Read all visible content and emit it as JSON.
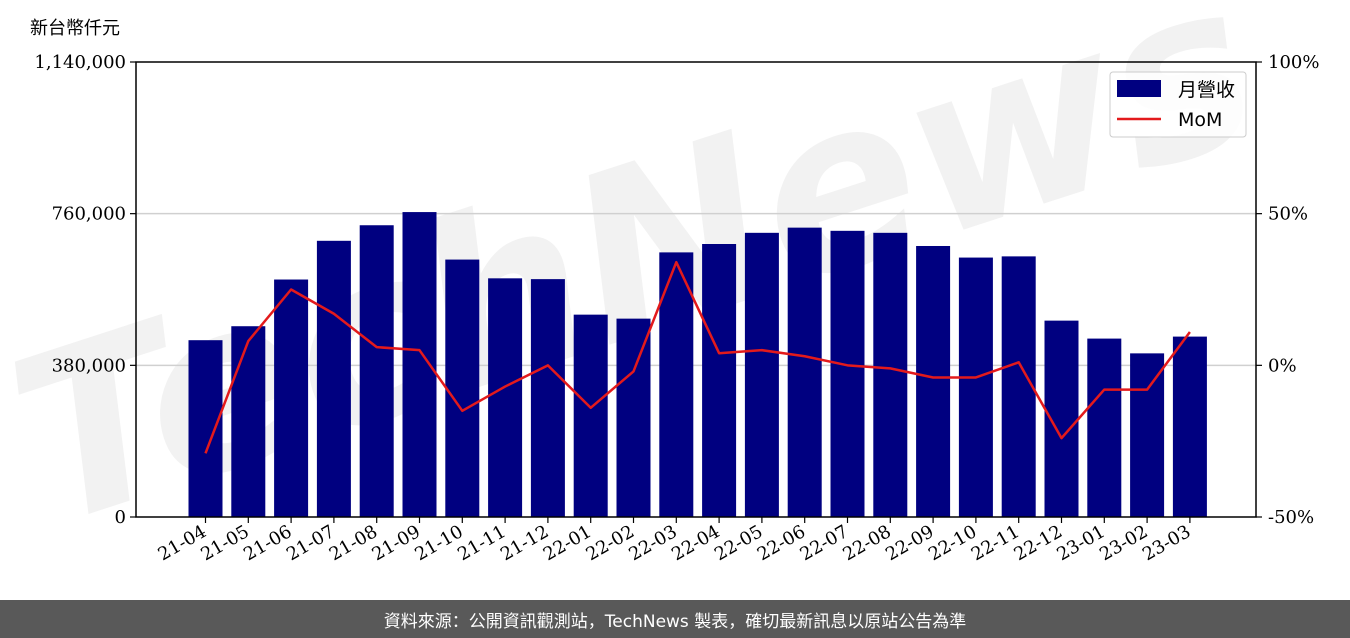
{
  "unit_label": "新台幣仟元",
  "footer_text": "資料來源：公開資訊觀測站，TechNews 製表，確切最新訊息以原站公告為準",
  "watermark": "TechNews",
  "colors": {
    "bar": "#000080",
    "line": "#e31a1c",
    "grid": "#d0d0d0",
    "footer_bg": "#595959"
  },
  "chart_data": {
    "type": "bar",
    "title": "",
    "xlabel": "",
    "ylabel": "",
    "categories": [
      "21-04",
      "21-05",
      "21-06",
      "21-07",
      "21-08",
      "21-09",
      "21-10",
      "21-11",
      "21-12",
      "22-01",
      "22-02",
      "22-03",
      "22-04",
      "22-05",
      "22-06",
      "22-07",
      "22-08",
      "22-09",
      "22-10",
      "22-11",
      "22-12",
      "23-01",
      "23-02",
      "23-03"
    ],
    "series": [
      {
        "name": "月營收",
        "type": "bar",
        "axis": "left",
        "values": [
          443000,
          478000,
          595000,
          692000,
          731000,
          764000,
          645000,
          598000,
          596000,
          507000,
          497000,
          663000,
          684000,
          712000,
          725000,
          717000,
          712000,
          679000,
          650000,
          653000,
          492000,
          447000,
          410000,
          452000
        ]
      },
      {
        "name": "MoM",
        "type": "line",
        "axis": "right",
        "values": [
          -29,
          8,
          25,
          17,
          6,
          5,
          -15,
          -7,
          0,
          -14,
          -2,
          34,
          4,
          5,
          3,
          0,
          -1,
          -4,
          -4,
          1,
          -24,
          -8,
          -8,
          11
        ]
      }
    ],
    "y_left": {
      "ylim": [
        0,
        1140000
      ],
      "ticks": [
        "0",
        "380,000",
        "760,000",
        "1,140,000"
      ],
      "tick_values": [
        0,
        380000,
        760000,
        1140000
      ]
    },
    "y_right": {
      "ylim": [
        -50,
        100
      ],
      "ticks": [
        "-50%",
        "0%",
        "50%",
        "100%"
      ],
      "tick_values": [
        -50,
        0,
        50,
        100
      ]
    },
    "grid": "horizontal",
    "legend": "top-right"
  }
}
